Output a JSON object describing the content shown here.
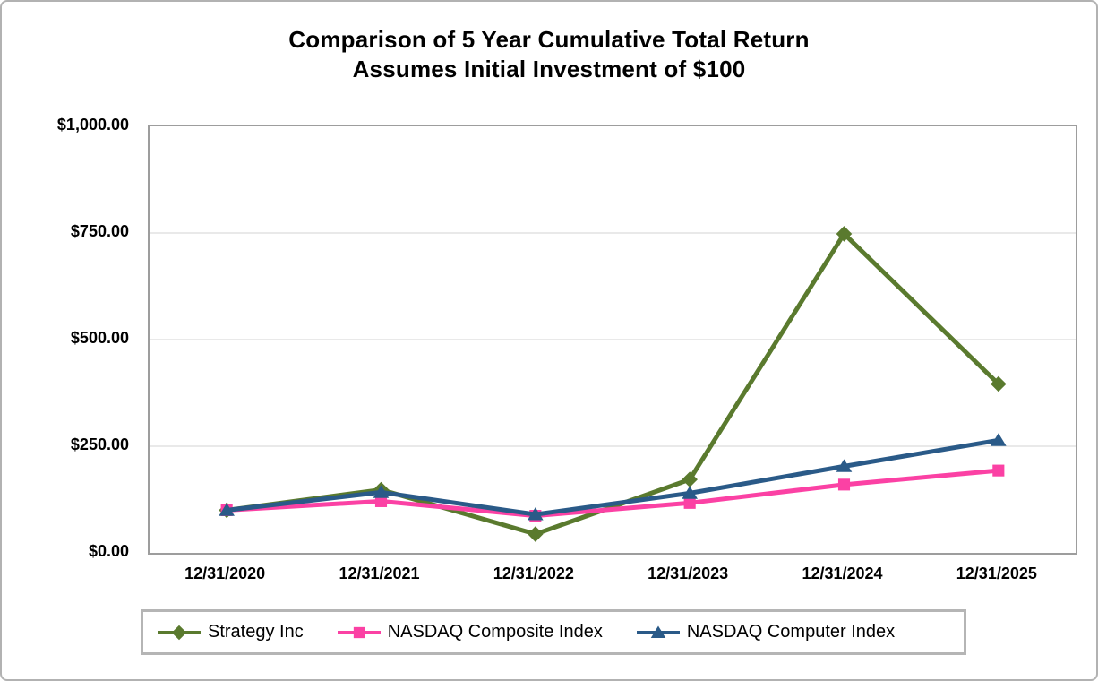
{
  "chart_data": {
    "type": "line",
    "title": "Comparison of 5 Year Cumulative Total Return",
    "subtitle": "Assumes Initial Investment of $100",
    "categories": [
      "12/31/2020",
      "12/31/2021",
      "12/31/2022",
      "12/31/2023",
      "12/31/2024",
      "12/31/2025"
    ],
    "series": [
      {
        "name": "Strategy Inc",
        "marker": "diamond",
        "color": "#5a7a2e",
        "values": [
          100,
          148,
          44,
          172,
          748,
          396
        ]
      },
      {
        "name": "NASDAQ Composite Index",
        "marker": "square",
        "color": "#fb41a4",
        "values": [
          100,
          121,
          87,
          117,
          160,
          193
        ]
      },
      {
        "name": "NASDAQ Computer Index",
        "marker": "triangle",
        "color": "#2a5a88",
        "values": [
          100,
          142,
          90,
          140,
          203,
          264
        ]
      }
    ],
    "y_ticks": [
      {
        "value": 0,
        "label": "$0.00"
      },
      {
        "value": 250,
        "label": "$250.00"
      },
      {
        "value": 500,
        "label": "$500.00"
      },
      {
        "value": 750,
        "label": "$750.00"
      },
      {
        "value": 1000,
        "label": "$1,000.00"
      }
    ],
    "ylim": [
      0,
      1000
    ],
    "grid": true,
    "legend_position": "bottom"
  },
  "colors": {
    "gridline": "#e9e9e9",
    "plot_border": "#9d9d9d",
    "figure_border": "#b2b2b2",
    "legend_border": "#b5b5b5",
    "text": "#000000",
    "background": "#ffffff"
  }
}
